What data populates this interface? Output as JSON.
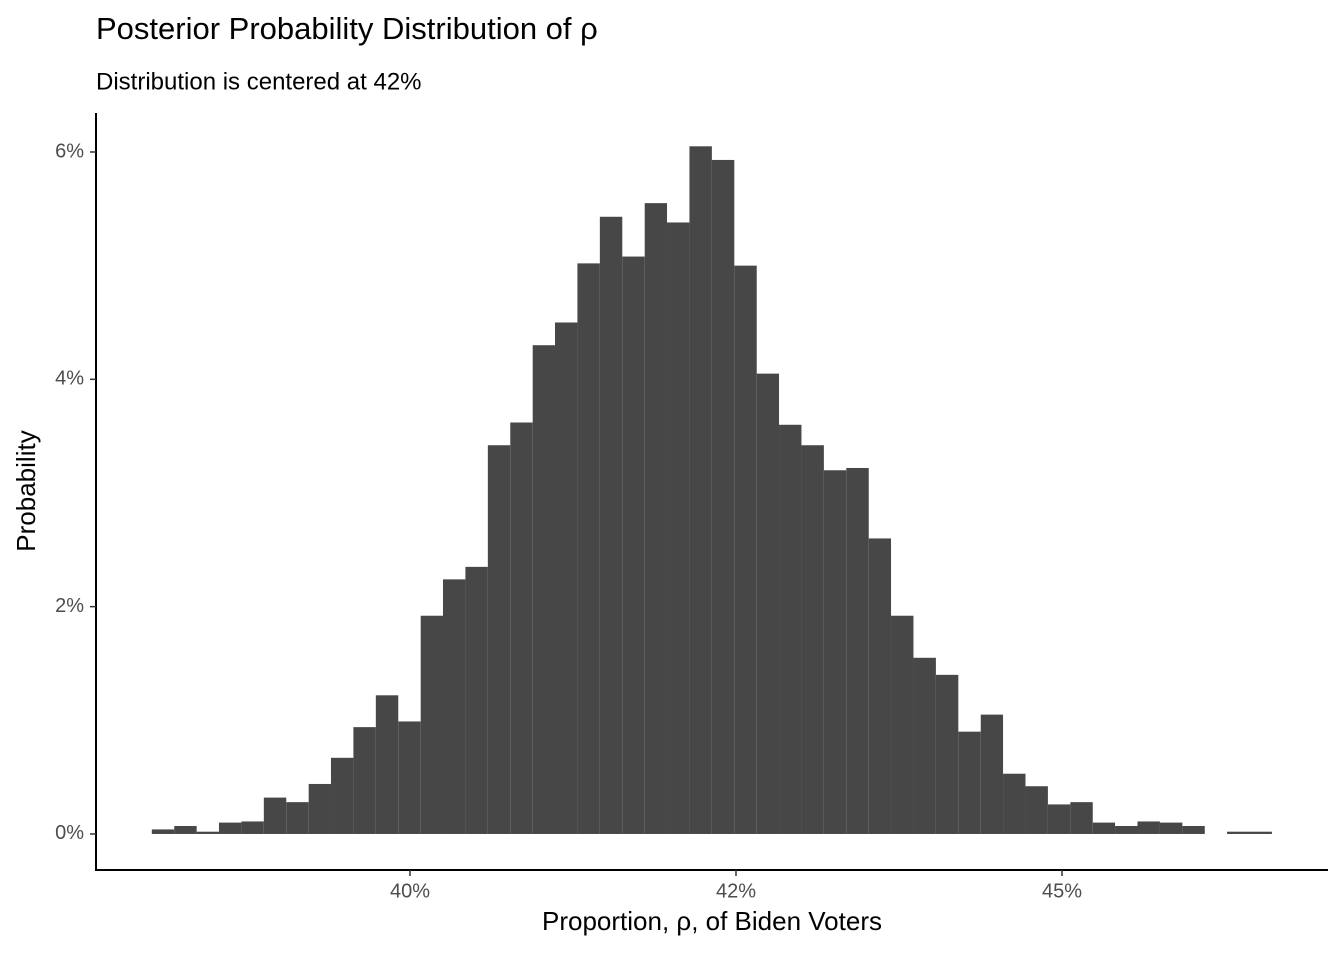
{
  "chart_data": {
    "type": "histogram",
    "title": "Posterior Probability Distribution of ρ",
    "subtitle": "Distribution is centered at 42%",
    "x_label": "Proportion, ρ, of Biden Voters",
    "y_label": "Probability",
    "color": "#474747",
    "bins": [
      38.02,
      38.192,
      38.364,
      38.535,
      38.707,
      38.879,
      39.051,
      39.223,
      39.394,
      39.566,
      39.738,
      39.91,
      40.082,
      40.253,
      40.425,
      40.597,
      40.769,
      40.941,
      41.112,
      41.284,
      41.456,
      41.628,
      41.8,
      41.971,
      42.143,
      42.315,
      42.487,
      42.659,
      42.83,
      43.002,
      43.174,
      43.346,
      43.518,
      43.689,
      43.861,
      44.033,
      44.205,
      44.377,
      44.548,
      44.72,
      44.892,
      45.064,
      45.236,
      45.407,
      45.579,
      45.751,
      45.923,
      46.095,
      46.266,
      46.438,
      46.61
    ],
    "values": [
      0.04,
      0.07,
      0.02,
      0.1,
      0.11,
      0.32,
      0.28,
      0.44,
      0.67,
      0.94,
      1.22,
      0.99,
      1.92,
      2.24,
      2.35,
      3.42,
      3.62,
      4.3,
      4.5,
      5.02,
      5.43,
      5.08,
      5.55,
      5.38,
      6.05,
      5.93,
      5.0,
      4.05,
      3.6,
      3.42,
      3.2,
      3.22,
      2.6,
      1.92,
      1.55,
      1.4,
      0.9,
      1.05,
      0.53,
      0.42,
      0.26,
      0.28,
      0.1,
      0.07,
      0.11,
      0.1,
      0.07,
      0,
      0.02,
      0.02
    ],
    "xlim": [
      37.592,
      47.04
    ],
    "ylim": [
      -0.317,
      6.343
    ],
    "xticks": [
      {
        "value": 40,
        "label": "40%"
      },
      {
        "value": 42.5,
        "label": "42%"
      },
      {
        "value": 45,
        "label": "45%"
      }
    ],
    "yticks": [
      {
        "value": 0,
        "label": "0%"
      },
      {
        "value": 2,
        "label": "2%"
      },
      {
        "value": 4,
        "label": "4%"
      },
      {
        "value": 6,
        "label": "6%"
      }
    ],
    "grid": false
  }
}
